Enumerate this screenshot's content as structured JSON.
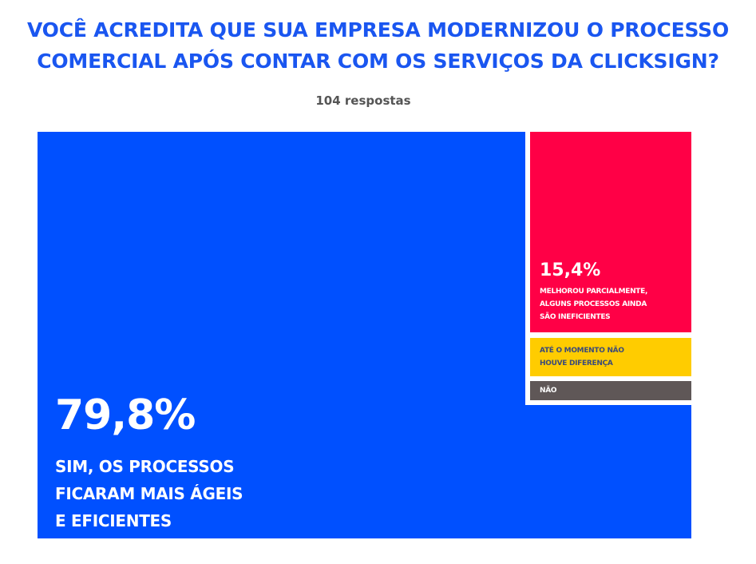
{
  "chart_data": {
    "type": "treemap",
    "title": [
      "VOCÊ ACREDITA QUE SUA EMPRESA MODERNIZOU O PROCESSO",
      "COMERCIAL APÓS CONTAR COM OS SERVIÇOS DA CLICKSIGN?"
    ],
    "subtitle": "104 respostas",
    "categories": [
      {
        "name": [
          "SIM, OS PROCESSOS",
          "FICARAM MAIS ÁGEIS",
          "E EFICIENTES"
        ],
        "value": 79.8,
        "value_label": "79,8%",
        "color": "#0050ff"
      },
      {
        "name": [
          "MELHOROU PARCIALMENTE,",
          "ALGUNS PROCESSOS AINDA",
          "SÃO INEFICIENTES"
        ],
        "value": 15.4,
        "value_label": "15,4%",
        "color": "#ff0046"
      },
      {
        "name": [
          "ATÉ O MOMENTO NÃO",
          "HOUVE DIFERENÇA"
        ],
        "value": null,
        "value_label": "",
        "color": "#ffcc00"
      },
      {
        "name": [
          "NÃO"
        ],
        "value": null,
        "value_label": "",
        "color": "#5f5757"
      }
    ]
  }
}
